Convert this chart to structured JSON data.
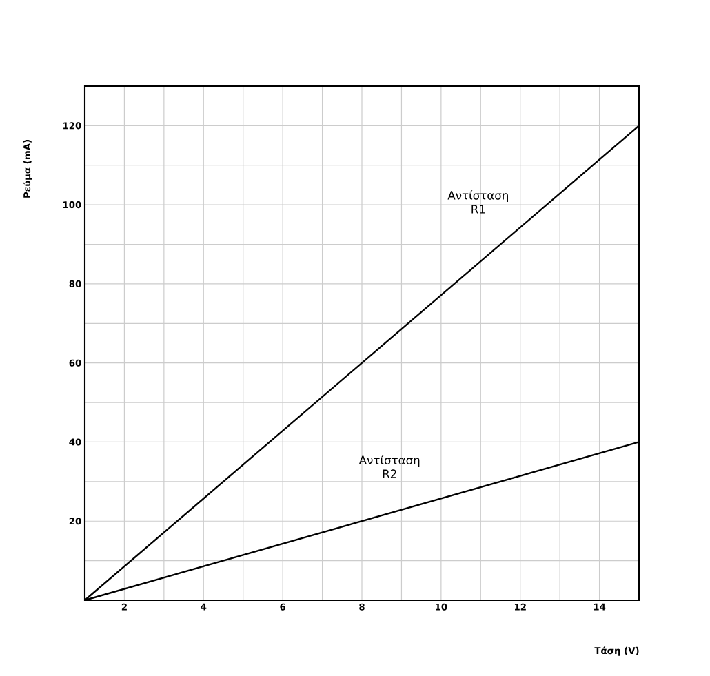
{
  "chart_data": {
    "type": "line",
    "xlabel": "Τάση (V)",
    "ylabel": "Ρεύμα (mA)",
    "x": [
      1,
      15
    ],
    "series": [
      {
        "name": "Αντίσταση R1",
        "color": "#000000",
        "values": [
          0,
          120
        ]
      },
      {
        "name": "Αντίσταση R2",
        "color": "#000000",
        "values": [
          0,
          40
        ]
      }
    ],
    "xlim": [
      1,
      15
    ],
    "ylim": [
      0,
      130
    ],
    "xticks": [
      2,
      {
        "value": 3,
        "label": null
      },
      4,
      {
        "value": 5,
        "label": null
      },
      6,
      {
        "value": 7,
        "label": null
      },
      8,
      {
        "value": 9,
        "label": null
      },
      10,
      {
        "value": 11,
        "label": null
      },
      12,
      {
        "value": 13,
        "label": null
      },
      14
    ],
    "yticks": [
      {
        "value": 10,
        "label": null
      },
      20,
      {
        "value": 30,
        "label": null
      },
      40,
      {
        "value": 50,
        "label": null
      },
      60,
      {
        "value": 70,
        "label": null
      },
      80,
      {
        "value": 90,
        "label": null
      },
      100,
      {
        "value": 110,
        "label": null
      },
      120
    ],
    "grid": true,
    "marker": "none",
    "line_style": "solid"
  }
}
